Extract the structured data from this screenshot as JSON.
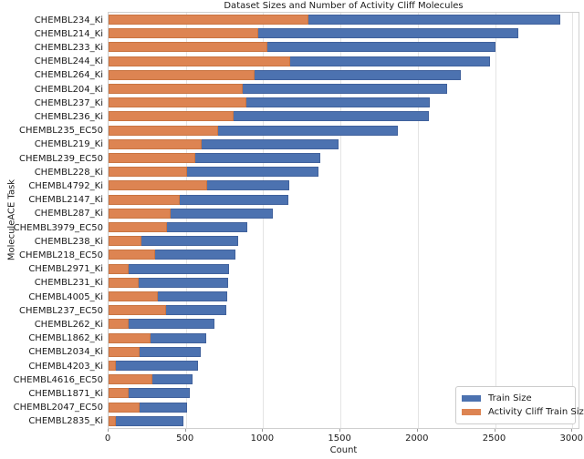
{
  "chart_data": {
    "type": "bar",
    "orientation": "horizontal",
    "title": "Dataset Sizes and Number of Activity Cliff Molecules",
    "xlabel": "Count",
    "ylabel": "MoleculeACE Task",
    "xlim": [
      0,
      3040
    ],
    "xticks": [
      0,
      500,
      1000,
      1500,
      2000,
      2500,
      3000
    ],
    "grid": true,
    "legend_position": "lower right",
    "categories": [
      "CHEMBL234_Ki",
      "CHEMBL214_Ki",
      "CHEMBL233_Ki",
      "CHEMBL244_Ki",
      "CHEMBL264_Ki",
      "CHEMBL204_Ki",
      "CHEMBL237_Ki",
      "CHEMBL236_Ki",
      "CHEMBL235_EC50",
      "CHEMBL219_Ki",
      "CHEMBL239_EC50",
      "CHEMBL228_Ki",
      "CHEMBL4792_Ki",
      "CHEMBL2147_Ki",
      "CHEMBL287_Ki",
      "CHEMBL3979_EC50",
      "CHEMBL238_Ki",
      "CHEMBL218_EC50",
      "CHEMBL2971_Ki",
      "CHEMBL231_Ki",
      "CHEMBL4005_Ki",
      "CHEMBL237_EC50",
      "CHEMBL262_Ki",
      "CHEMBL1862_Ki",
      "CHEMBL2034_Ki",
      "CHEMBL4203_Ki",
      "CHEMBL4616_EC50",
      "CHEMBL1871_Ki",
      "CHEMBL2047_EC50",
      "CHEMBL2835_Ki"
    ],
    "series": [
      {
        "name": "Train Size",
        "color": "#4c72b0",
        "values": [
          2920,
          2650,
          2500,
          2470,
          2280,
          2190,
          2075,
          2070,
          1870,
          1490,
          1370,
          1360,
          1170,
          1160,
          1060,
          900,
          840,
          820,
          780,
          775,
          765,
          760,
          685,
          630,
          595,
          580,
          545,
          525,
          505,
          485
        ]
      },
      {
        "name": "Activity Cliff Train Size",
        "color": "#dd8452",
        "values": [
          1290,
          970,
          1030,
          1175,
          945,
          870,
          890,
          810,
          710,
          600,
          560,
          510,
          640,
          460,
          400,
          380,
          215,
          300,
          130,
          195,
          320,
          370,
          130,
          270,
          200,
          50,
          285,
          130,
          200,
          50
        ]
      }
    ]
  },
  "colors": {
    "train_bar": "#4c72b0",
    "cliff_bar": "#dd8452",
    "gridline": "#e4e4e4",
    "spine": "#cfcfcf",
    "text": "#1a1a1a"
  }
}
